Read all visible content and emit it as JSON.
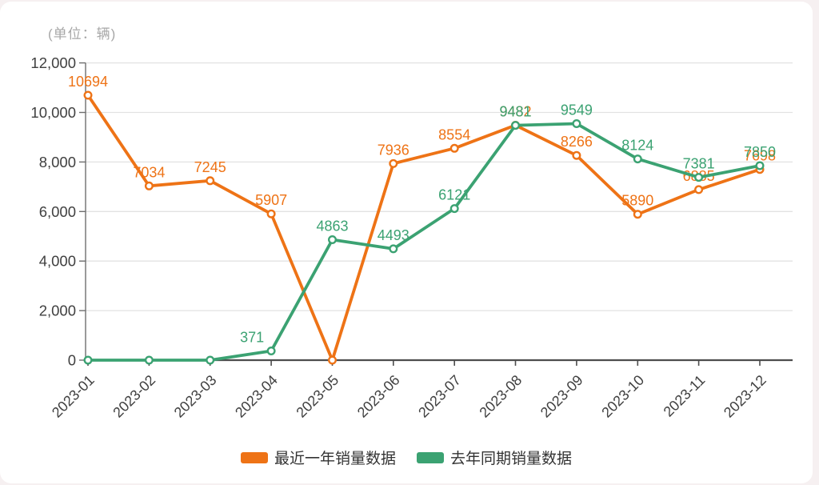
{
  "page": {
    "unit_note": "(单位：辆)",
    "background_color": "#f6f0f1",
    "card_color": "#ffffff"
  },
  "styles": {
    "grid_color": "#e2e2e2",
    "x_axis_color": "#4d4d4d",
    "y_axis_color": "#6e6e6e",
    "tick_label_color": "#404040",
    "legend_text_color": "#333333"
  },
  "chart_data": {
    "type": "line",
    "categories": [
      "2023-01",
      "2023-02",
      "2023-03",
      "2023-04",
      "2023-05",
      "2023-06",
      "2023-07",
      "2023-08",
      "2023-09",
      "2023-10",
      "2023-11",
      "2023-12"
    ],
    "series": [
      {
        "id": "current-year",
        "name": "最近一年销量数据",
        "color": "#ee7316",
        "values": [
          10694,
          7034,
          7245,
          5907,
          0,
          7936,
          8554,
          9482,
          8266,
          5890,
          6885,
          7698
        ]
      },
      {
        "id": "last-year-same-period",
        "name": "去年同期销量数据",
        "color": "#3ba272",
        "values": [
          0,
          0,
          0,
          371,
          4863,
          4493,
          6121,
          9481,
          9549,
          8124,
          7381,
          7850
        ],
        "label_dx": {
          "3": -24
        }
      }
    ],
    "ylim": [
      0,
      12000
    ],
    "y_ticks": [
      0,
      2000,
      4000,
      6000,
      8000,
      10000,
      12000
    ],
    "y_tick_labels": [
      "0",
      "2,000",
      "4,000",
      "6,000",
      "8,000",
      "10,000",
      "12,000"
    ],
    "grid": true,
    "hide_zero_labels": true,
    "x_label_rotation": 45,
    "legend_position": "bottom",
    "point_labels_visible": true
  }
}
